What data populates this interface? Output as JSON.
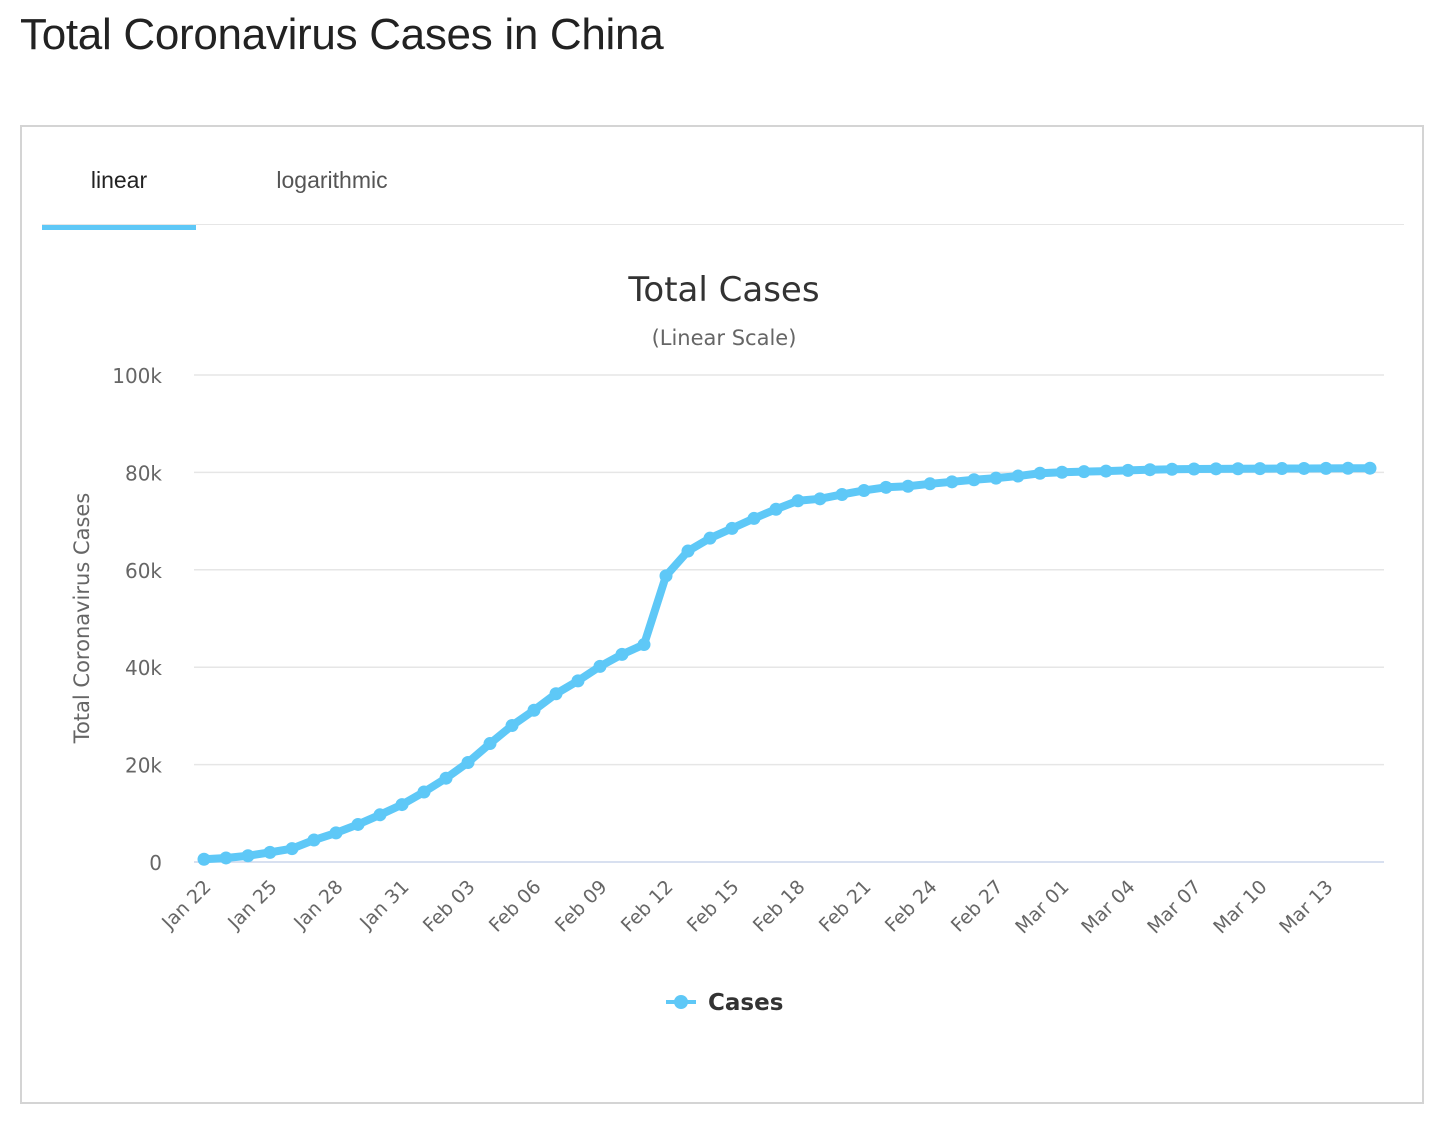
{
  "page": {
    "title": "Total Coronavirus Cases in China"
  },
  "tabs": [
    {
      "label": "linear",
      "active": true
    },
    {
      "label": "logarithmic",
      "active": false
    }
  ],
  "colors": {
    "series": "#5ec8f7",
    "tab_accent": "#5ec8f7",
    "grid": "#e6e6e6",
    "axis_line": "#ccd6eb"
  },
  "chart_data": {
    "type": "line",
    "title": "Total Cases",
    "subtitle": "(Linear Scale)",
    "ylabel": "Total Coronavirus Cases",
    "xlabel": "",
    "ylim": [
      0,
      100000
    ],
    "grid": true,
    "legend_position": "bottom-center",
    "y_ticks": [
      "0",
      "20k",
      "40k",
      "60k",
      "80k",
      "100k"
    ],
    "x_tick_labels": [
      "Jan 22",
      "Jan 25",
      "Jan 28",
      "Jan 31",
      "Feb 03",
      "Feb 06",
      "Feb 09",
      "Feb 12",
      "Feb 15",
      "Feb 18",
      "Feb 21",
      "Feb 24",
      "Feb 27",
      "Mar 01",
      "Mar 04",
      "Mar 07",
      "Mar 10",
      "Mar 13"
    ],
    "categories": [
      "Jan 22",
      "Jan 23",
      "Jan 24",
      "Jan 25",
      "Jan 26",
      "Jan 27",
      "Jan 28",
      "Jan 29",
      "Jan 30",
      "Jan 31",
      "Feb 01",
      "Feb 02",
      "Feb 03",
      "Feb 04",
      "Feb 05",
      "Feb 06",
      "Feb 07",
      "Feb 08",
      "Feb 09",
      "Feb 10",
      "Feb 11",
      "Feb 12",
      "Feb 13",
      "Feb 14",
      "Feb 15",
      "Feb 16",
      "Feb 17",
      "Feb 18",
      "Feb 19",
      "Feb 20",
      "Feb 21",
      "Feb 22",
      "Feb 23",
      "Feb 24",
      "Feb 25",
      "Feb 26",
      "Feb 27",
      "Feb 28",
      "Feb 29",
      "Mar 01",
      "Mar 02",
      "Mar 03",
      "Mar 04",
      "Mar 05",
      "Mar 06",
      "Mar 07",
      "Mar 08",
      "Mar 09",
      "Mar 10",
      "Mar 11",
      "Mar 12",
      "Mar 13",
      "Mar 14",
      "Mar 15"
    ],
    "series": [
      {
        "name": "Cases",
        "values": [
          571,
          830,
          1287,
          1975,
          2744,
          4515,
          5974,
          7711,
          9692,
          11791,
          14380,
          17205,
          20438,
          24324,
          28018,
          31161,
          34546,
          37198,
          40171,
          42638,
          44653,
          58761,
          63851,
          66492,
          68500,
          70548,
          72436,
          74185,
          74576,
          75465,
          76288,
          76936,
          77150,
          77658,
          78064,
          78497,
          78824,
          79251,
          79824,
          80026,
          80151,
          80270,
          80409,
          80552,
          80651,
          80695,
          80735,
          80754,
          80778,
          80793,
          80813,
          80824,
          80844,
          80860
        ]
      }
    ]
  }
}
